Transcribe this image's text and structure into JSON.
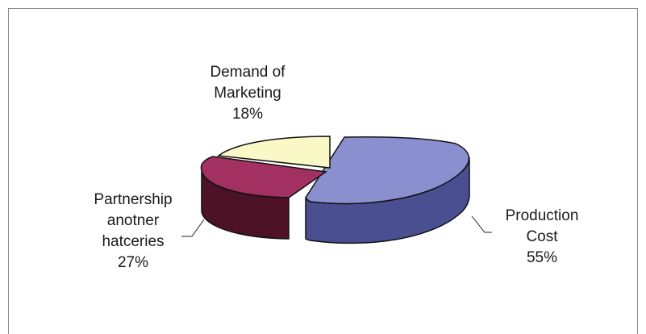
{
  "chart_data": {
    "type": "pie",
    "three_d": true,
    "title": "",
    "legend": "none",
    "slices": [
      {
        "label_lines": [
          "Production",
          "Cost"
        ],
        "pct_label": "55%",
        "value": 55,
        "top_color": "#8a8fcf",
        "side_color": "#4a4f92",
        "exploded": true
      },
      {
        "label_lines": [
          "Partnership",
          "anotner",
          "hatceries"
        ],
        "pct_label": "27%",
        "value": 27,
        "top_color": "#a23060",
        "side_color": "#4e1226",
        "exploded": false
      },
      {
        "label_lines": [
          "Demand of",
          "Marketing"
        ],
        "pct_label": "18%",
        "value": 18,
        "top_color": "#fbf8c8",
        "side_color": "#c8c49a",
        "exploded": true
      }
    ]
  }
}
